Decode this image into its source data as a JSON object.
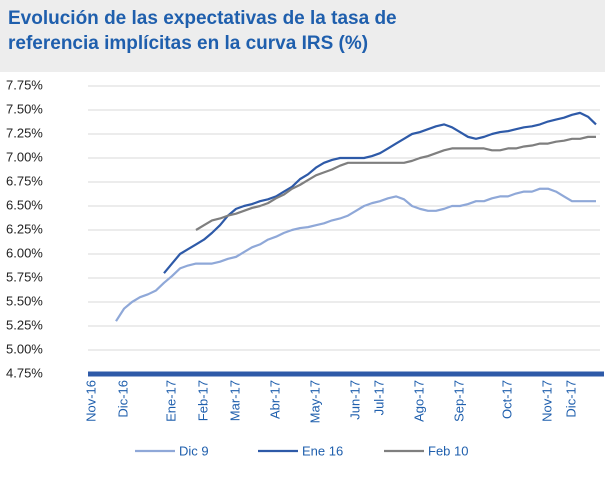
{
  "chart_data": {
    "type": "line",
    "title": "Evolución de las expectativas de la tasa de referencia implícitas en la curva IRS (%)",
    "categories": [
      "Nov-16",
      null,
      null,
      null,
      "Dic-16",
      null,
      null,
      null,
      null,
      null,
      "Ene-17",
      null,
      null,
      null,
      "Feb-17",
      null,
      null,
      null,
      "Mar-17",
      null,
      null,
      null,
      null,
      "Abr-17",
      null,
      null,
      null,
      null,
      "May-17",
      null,
      null,
      null,
      null,
      "Jun-17",
      null,
      null,
      "Jul-17",
      null,
      null,
      null,
      null,
      "Ago-17",
      null,
      null,
      null,
      null,
      "Sep-17",
      null,
      null,
      null,
      null,
      null,
      "Oct-17",
      null,
      null,
      null,
      null,
      "Nov-17",
      null,
      null,
      "Dic-17",
      null,
      null,
      null
    ],
    "series": [
      {
        "name": "Dic 9",
        "color": "#8fa8d8",
        "values": [
          null,
          null,
          null,
          5.3,
          5.43,
          5.5,
          5.55,
          5.58,
          5.62,
          5.7,
          5.77,
          5.85,
          5.88,
          5.9,
          5.9,
          5.9,
          5.92,
          5.95,
          5.97,
          6.02,
          6.07,
          6.1,
          6.15,
          6.18,
          6.22,
          6.25,
          6.27,
          6.28,
          6.3,
          6.32,
          6.35,
          6.37,
          6.4,
          6.45,
          6.5,
          6.53,
          6.55,
          6.58,
          6.6,
          6.57,
          6.5,
          6.47,
          6.45,
          6.45,
          6.47,
          6.5,
          6.5,
          6.52,
          6.55,
          6.55,
          6.58,
          6.6,
          6.6,
          6.63,
          6.65,
          6.65,
          6.68,
          6.68,
          6.65,
          6.6,
          6.55,
          6.55,
          6.55,
          6.55
        ]
      },
      {
        "name": "Ene 16",
        "color": "#2e5aa8",
        "values": [
          null,
          null,
          null,
          null,
          null,
          null,
          null,
          null,
          null,
          5.8,
          5.9,
          6.0,
          6.05,
          6.1,
          6.15,
          6.22,
          6.3,
          6.4,
          6.47,
          6.5,
          6.52,
          6.55,
          6.57,
          6.6,
          6.65,
          6.7,
          6.78,
          6.83,
          6.9,
          6.95,
          6.98,
          7.0,
          7.0,
          7.0,
          7.0,
          7.02,
          7.05,
          7.1,
          7.15,
          7.2,
          7.25,
          7.27,
          7.3,
          7.33,
          7.35,
          7.32,
          7.27,
          7.22,
          7.2,
          7.22,
          7.25,
          7.27,
          7.28,
          7.3,
          7.32,
          7.33,
          7.35,
          7.38,
          7.4,
          7.42,
          7.45,
          7.47,
          7.43,
          7.35
        ]
      },
      {
        "name": "Feb 10",
        "color": "#7f7f7f",
        "values": [
          null,
          null,
          null,
          null,
          null,
          null,
          null,
          null,
          null,
          null,
          null,
          null,
          null,
          6.25,
          6.3,
          6.35,
          6.37,
          6.4,
          6.42,
          6.45,
          6.48,
          6.5,
          6.53,
          6.58,
          6.62,
          6.68,
          6.72,
          6.77,
          6.82,
          6.85,
          6.88,
          6.92,
          6.95,
          6.95,
          6.95,
          6.95,
          6.95,
          6.95,
          6.95,
          6.95,
          6.97,
          7.0,
          7.02,
          7.05,
          7.08,
          7.1,
          7.1,
          7.1,
          7.1,
          7.1,
          7.08,
          7.08,
          7.1,
          7.1,
          7.12,
          7.13,
          7.15,
          7.15,
          7.17,
          7.18,
          7.2,
          7.2,
          7.22,
          7.22
        ]
      }
    ],
    "ylim": [
      4.75,
      7.75
    ],
    "yticks": [
      {
        "value": 4.75,
        "label": "4.75%"
      },
      {
        "value": 5.0,
        "label": "5.00%"
      },
      {
        "value": 5.25,
        "label": "5.25%"
      },
      {
        "value": 5.5,
        "label": "5.50%"
      },
      {
        "value": 5.75,
        "label": "5.75%"
      },
      {
        "value": 6.0,
        "label": "6.00%"
      },
      {
        "value": 6.25,
        "label": "6.25%"
      },
      {
        "value": 6.5,
        "label": "6.50%"
      },
      {
        "value": 6.75,
        "label": "6.75%"
      },
      {
        "value": 7.0,
        "label": "7.00%"
      },
      {
        "value": 7.25,
        "label": "7.25%"
      },
      {
        "value": 7.5,
        "label": "7.50%"
      },
      {
        "value": 7.75,
        "label": "7.75%"
      }
    ],
    "grid": true
  }
}
